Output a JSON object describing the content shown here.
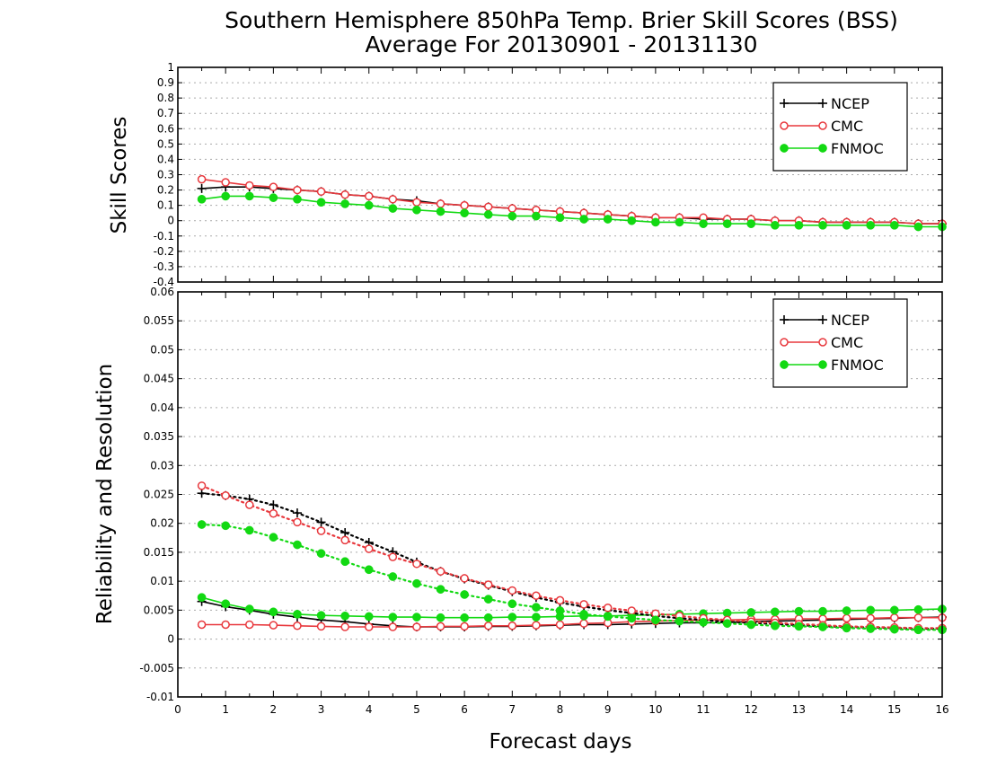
{
  "chart_data": {
    "type": "line",
    "title": "Southern Hemisphere 850hPa Temp. Brier Skill Scores (BSS)",
    "subtitle": "Average For 20130901 - 20131130",
    "xlabel": "Forecast days",
    "xlim": [
      0,
      16
    ],
    "xticks": [
      "0",
      "1",
      "2",
      "3",
      "4",
      "5",
      "6",
      "7",
      "8",
      "9",
      "10",
      "11",
      "12",
      "13",
      "14",
      "15",
      "16"
    ],
    "colors": {
      "NCEP": "#000000",
      "CMC": "#e8383d",
      "FNMOC": "#12d912"
    },
    "x": [
      0.5,
      1,
      1.5,
      2,
      2.5,
      3,
      3.5,
      4,
      4.5,
      5,
      5.5,
      6,
      6.5,
      7,
      7.5,
      8,
      8.5,
      9,
      9.5,
      10,
      10.5,
      11,
      11.5,
      12,
      12.5,
      13,
      13.5,
      14,
      14.5,
      15,
      15.5,
      16
    ],
    "panels": [
      {
        "ylabel": "Skill Scores",
        "ylim": [
          -0.4,
          1
        ],
        "yticks": [
          "1",
          "0.9",
          "0.8",
          "0.7",
          "0.6",
          "0.5",
          "0.4",
          "0.3",
          "0.2",
          "0.1",
          "0",
          "-0.1",
          "-0.2",
          "-0.3",
          "-0.4"
        ],
        "legend": [
          "NCEP",
          "CMC",
          "FNMOC"
        ],
        "series": [
          {
            "name": "NCEP",
            "marker": "plus",
            "values": [
              0.21,
              0.22,
              0.22,
              0.21,
              0.2,
              0.19,
              0.17,
              0.16,
              0.14,
              0.13,
              0.11,
              0.1,
              0.09,
              0.08,
              0.07,
              0.06,
              0.05,
              0.04,
              0.03,
              0.02,
              0.02,
              0.01,
              0.01,
              0.01,
              0.0,
              0.0,
              -0.01,
              -0.01,
              -0.01,
              -0.01,
              -0.02,
              -0.02
            ]
          },
          {
            "name": "CMC",
            "marker": "open-circle",
            "values": [
              0.27,
              0.25,
              0.23,
              0.22,
              0.2,
              0.19,
              0.17,
              0.16,
              0.14,
              0.12,
              0.11,
              0.1,
              0.09,
              0.08,
              0.07,
              0.06,
              0.05,
              0.04,
              0.03,
              0.02,
              0.02,
              0.02,
              0.01,
              0.01,
              0.0,
              0.0,
              -0.01,
              -0.01,
              -0.01,
              -0.01,
              -0.02,
              -0.02
            ]
          },
          {
            "name": "FNMOC",
            "marker": "filled-circle",
            "values": [
              0.14,
              0.16,
              0.16,
              0.15,
              0.14,
              0.12,
              0.11,
              0.1,
              0.08,
              0.07,
              0.06,
              0.05,
              0.04,
              0.03,
              0.03,
              0.02,
              0.01,
              0.01,
              0.0,
              -0.01,
              -0.01,
              -0.02,
              -0.02,
              -0.02,
              -0.03,
              -0.03,
              -0.03,
              -0.03,
              -0.03,
              -0.03,
              -0.04,
              -0.04
            ]
          }
        ]
      },
      {
        "ylabel": "Reliability and Resolution",
        "ylim": [
          -0.01,
          0.06
        ],
        "yticks": [
          "0.06",
          "0.055",
          "0.05",
          "0.045",
          "0.04",
          "0.035",
          "0.03",
          "0.025",
          "0.02",
          "0.015",
          "0.01",
          "0.005",
          "0",
          "-0.005",
          "-0.01"
        ],
        "legend": [
          "NCEP",
          "CMC",
          "FNMOC"
        ],
        "series": [
          {
            "name": "NCEP",
            "line": "solid",
            "marker": "plus",
            "values": [
              0.0065,
              0.0056,
              0.005,
              0.0043,
              0.0038,
              0.0033,
              0.003,
              0.0026,
              0.0023,
              0.0021,
              0.0021,
              0.0021,
              0.0022,
              0.0022,
              0.0023,
              0.0024,
              0.0025,
              0.0025,
              0.0026,
              0.0027,
              0.0028,
              0.0028,
              0.0029,
              0.003,
              0.0031,
              0.0032,
              0.0033,
              0.0034,
              0.0035,
              0.0036,
              0.0037,
              0.0038
            ]
          },
          {
            "name": "CMC",
            "line": "solid",
            "marker": "open-circle",
            "values": [
              0.0025,
              0.0025,
              0.0025,
              0.0024,
              0.0023,
              0.0022,
              0.0021,
              0.0021,
              0.0021,
              0.0021,
              0.0022,
              0.0022,
              0.0023,
              0.0023,
              0.0024,
              0.0025,
              0.0027,
              0.0028,
              0.003,
              0.0031,
              0.0032,
              0.0033,
              0.0033,
              0.0034,
              0.0034,
              0.0035,
              0.0035,
              0.0036,
              0.0036,
              0.0037,
              0.0037,
              0.0037
            ]
          },
          {
            "name": "FNMOC",
            "line": "solid",
            "marker": "filled-circle",
            "values": [
              0.0072,
              0.0061,
              0.0052,
              0.0047,
              0.0043,
              0.0041,
              0.004,
              0.0039,
              0.0038,
              0.0038,
              0.0037,
              0.0037,
              0.0037,
              0.0038,
              0.0038,
              0.0039,
              0.004,
              0.004,
              0.0041,
              0.0042,
              0.0043,
              0.0044,
              0.0045,
              0.0046,
              0.0047,
              0.0048,
              0.0048,
              0.0049,
              0.005,
              0.005,
              0.0051,
              0.0052
            ]
          },
          {
            "name": "NCEP",
            "line": "dotted",
            "marker": "plus",
            "values": [
              0.0252,
              0.0248,
              0.0242,
              0.0232,
              0.0218,
              0.0202,
              0.0184,
              0.0167,
              0.0151,
              0.0133,
              0.0117,
              0.0104,
              0.0093,
              0.0082,
              0.0072,
              0.0063,
              0.0056,
              0.005,
              0.0045,
              0.004,
              0.0036,
              0.0033,
              0.003,
              0.0028,
              0.0026,
              0.0024,
              0.0022,
              0.0021,
              0.002,
              0.0019,
              0.0018,
              0.0018
            ]
          },
          {
            "name": "CMC",
            "line": "dotted",
            "marker": "open-circle",
            "values": [
              0.0265,
              0.0248,
              0.0232,
              0.0217,
              0.0202,
              0.0187,
              0.0171,
              0.0156,
              0.0142,
              0.013,
              0.0117,
              0.0105,
              0.0094,
              0.0084,
              0.0075,
              0.0067,
              0.006,
              0.0054,
              0.0049,
              0.0044,
              0.004,
              0.0036,
              0.0033,
              0.003,
              0.0028,
              0.0026,
              0.0024,
              0.0022,
              0.0021,
              0.002,
              0.0019,
              0.0019
            ]
          },
          {
            "name": "FNMOC",
            "line": "dotted",
            "marker": "filled-circle",
            "values": [
              0.0198,
              0.0196,
              0.0188,
              0.0176,
              0.0163,
              0.0148,
              0.0134,
              0.012,
              0.0108,
              0.0096,
              0.0086,
              0.0077,
              0.0069,
              0.0061,
              0.0055,
              0.0049,
              0.0043,
              0.0039,
              0.0036,
              0.0033,
              0.0031,
              0.0029,
              0.0027,
              0.0025,
              0.0023,
              0.0022,
              0.0021,
              0.0019,
              0.0018,
              0.0017,
              0.0016,
              0.0016
            ]
          }
        ]
      }
    ]
  }
}
